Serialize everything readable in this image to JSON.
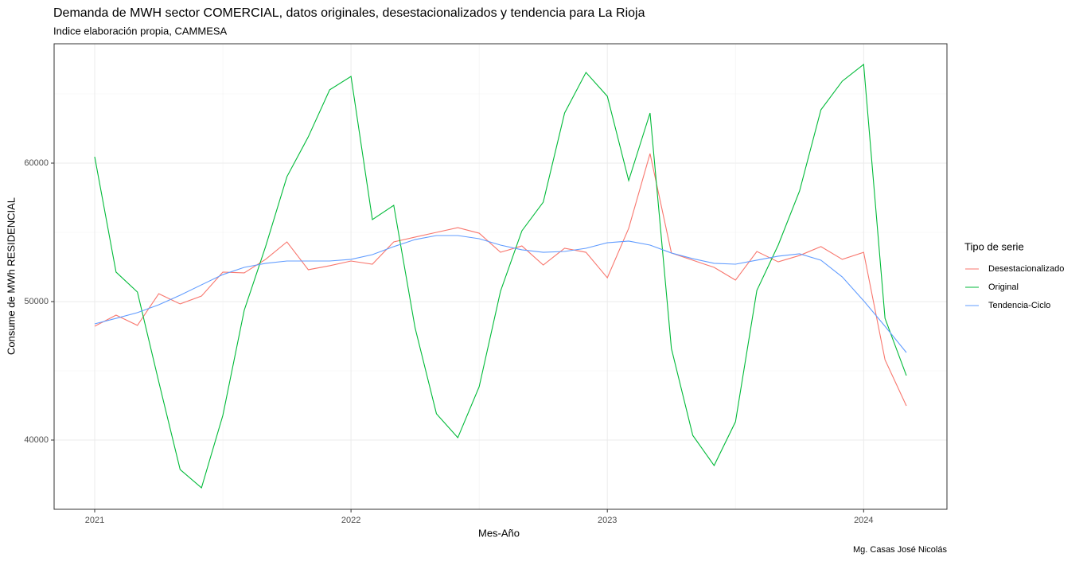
{
  "chart_data": {
    "type": "line",
    "title": "Demanda de MWH sector COMERCIAL, datos originales, desestacionalizados y tendencia para La Rioja",
    "subtitle": "Indice elaboración propia, CAMMESA",
    "x_label": "Mes-Año",
    "y_label": "Consume de MWh RESIDENCIAL",
    "caption": "Mg. Casas José Nicolás",
    "legend_title": "Tipo de serie",
    "legend": "right",
    "grid": true,
    "x": [
      "2021-01",
      "2021-02",
      "2021-03",
      "2021-04",
      "2021-05",
      "2021-06",
      "2021-07",
      "2021-08",
      "2021-09",
      "2021-10",
      "2021-11",
      "2021-12",
      "2022-01",
      "2022-02",
      "2022-03",
      "2022-04",
      "2022-05",
      "2022-06",
      "2022-07",
      "2022-08",
      "2022-09",
      "2022-10",
      "2022-11",
      "2022-12",
      "2023-01",
      "2023-02",
      "2023-03",
      "2023-04",
      "2023-05",
      "2023-06",
      "2023-07",
      "2023-08",
      "2023-09",
      "2023-10",
      "2023-11",
      "2023-12",
      "2024-01",
      "2024-02",
      "2024-03"
    ],
    "xlim": [
      "2021-01",
      "2024-03"
    ],
    "xticks": [
      {
        "value": "2021-01",
        "label": "2021"
      },
      {
        "value": "2022-01",
        "label": "2022"
      },
      {
        "value": "2023-01",
        "label": "2023"
      },
      {
        "value": "2024-01",
        "label": "2024"
      }
    ],
    "ylim": [
      35000,
      68620
    ],
    "yticks": [
      40000,
      50000,
      60000
    ],
    "series": [
      {
        "name": "Desestacionalizado",
        "color": "#F8766D",
        "values": [
          48220,
          49020,
          48280,
          50570,
          49830,
          50400,
          52130,
          52070,
          53050,
          54310,
          52300,
          52590,
          52930,
          52700,
          54310,
          54660,
          55000,
          55340,
          54940,
          53560,
          54020,
          52640,
          53850,
          53560,
          51720,
          55290,
          60690,
          53510,
          52990,
          52470,
          51550,
          53620,
          52870,
          53330,
          53970,
          53050,
          53560,
          45800,
          42470
        ]
      },
      {
        "name": "Original",
        "color": "#00BA38",
        "values": [
          60460,
          52130,
          50690,
          44200,
          37870,
          36550,
          41780,
          49370,
          53970,
          59020,
          61900,
          65290,
          66260,
          55920,
          56950,
          48100,
          41900,
          40170,
          43850,
          50750,
          55110,
          57180,
          63620,
          66550,
          64830,
          58740,
          63620,
          46610,
          40340,
          38160,
          41320,
          50800,
          54080,
          57990,
          63850,
          65920,
          67130,
          48790,
          44660
        ]
      },
      {
        "name": "Tendencia-Ciclo",
        "color": "#619CFF",
        "values": [
          48390,
          48790,
          49200,
          49770,
          50460,
          51210,
          51950,
          52470,
          52760,
          52930,
          52930,
          52930,
          53050,
          53390,
          53970,
          54480,
          54770,
          54770,
          54540,
          54080,
          53740,
          53560,
          53620,
          53850,
          54250,
          54370,
          54080,
          53510,
          53100,
          52760,
          52700,
          52990,
          53280,
          53450,
          52990,
          51780,
          50060,
          48220,
          46320
        ]
      }
    ]
  }
}
